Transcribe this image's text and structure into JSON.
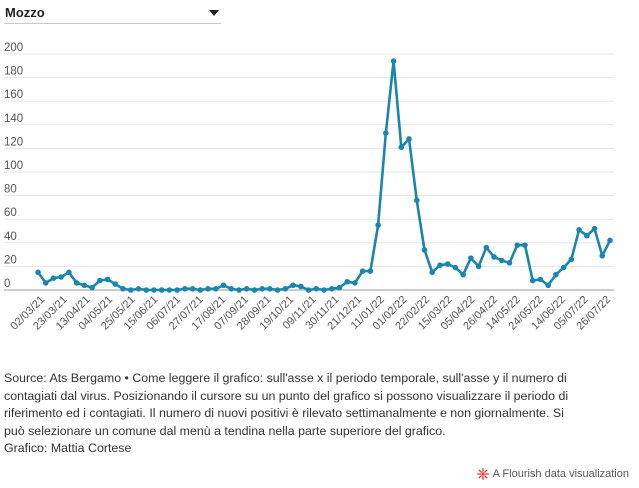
{
  "selector": {
    "value": "Mozzo"
  },
  "chart_data": {
    "type": "line",
    "title": "",
    "xlabel": "",
    "ylabel": "",
    "ylim": [
      0,
      200
    ],
    "yticks": [
      0,
      20,
      40,
      60,
      80,
      100,
      120,
      140,
      160,
      180,
      200
    ],
    "grid": true,
    "line_color": "#1a86b0",
    "x_tick_labels": [
      "02/03/21",
      "23/03/21",
      "13/04/21",
      "04/05/21",
      "25/05/21",
      "15/06/21",
      "06/07/21",
      "27/07/21",
      "17/08/21",
      "07/09/21",
      "28/09/21",
      "19/10/21",
      "09/11/21",
      "30/11/21",
      "21/12/21",
      "11/01/22",
      "01/02/22",
      "22/02/22",
      "15/03/22",
      "05/04/22",
      "26/04/22",
      "14/05/22",
      "24/05/22",
      "14/06/22",
      "05/07/22",
      "26/07/22"
    ],
    "series": [
      {
        "name": "",
        "values": [
          15,
          6,
          10,
          11,
          15,
          6,
          4,
          2,
          8,
          9,
          5,
          1,
          0,
          1,
          0,
          0,
          0,
          0,
          0,
          1,
          1,
          0,
          1,
          1,
          4,
          1,
          0,
          1,
          0,
          1,
          1,
          0,
          1,
          4,
          3,
          0,
          1,
          0,
          1,
          2,
          7,
          6,
          16,
          16,
          55,
          133,
          194,
          121,
          128,
          76,
          34,
          15,
          21,
          22,
          19,
          13,
          27,
          20,
          36,
          28,
          25,
          23,
          38,
          38,
          8,
          9,
          4,
          13,
          19,
          26,
          51,
          46,
          52,
          29,
          42
        ]
      }
    ]
  },
  "source": {
    "lines": [
      "Source: Ats Bergamo • Come leggere il grafico: sull'asse x il periodo temporale, sull'asse y il numero di",
      "contagiati dal virus. Posizionando il cursore su un punto del grafico si possono visualizzare il periodo di",
      "riferimento ed i contagiati. Il numero di nuovi positivi è rilevato settimanalmente e non giornalmente. Si",
      "può selezionare un comune dal menù a tendina nella parte superiore del grafico.",
      "Grafico: Mattia Cortese"
    ]
  },
  "footer": {
    "label": "A Flourish data visualization",
    "accent": "#e3342f"
  }
}
